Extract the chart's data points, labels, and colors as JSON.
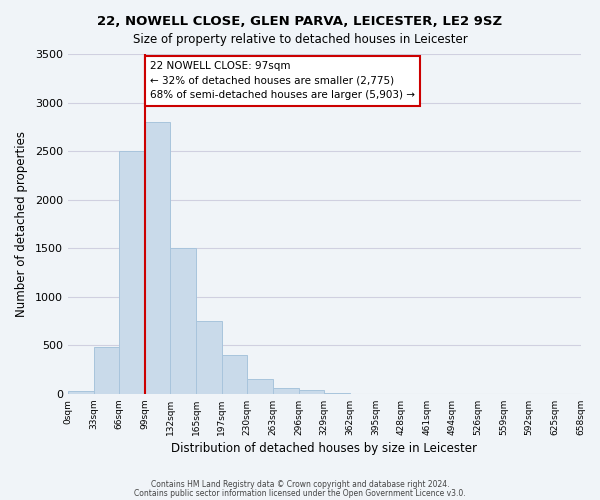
{
  "title1": "22, NOWELL CLOSE, GLEN PARVA, LEICESTER, LE2 9SZ",
  "title2": "Size of property relative to detached houses in Leicester",
  "xlabel": "Distribution of detached houses by size in Leicester",
  "ylabel": "Number of detached properties",
  "footer1": "Contains HM Land Registry data © Crown copyright and database right 2024.",
  "footer2": "Contains public sector information licensed under the Open Government Licence v3.0.",
  "annotation_line1": "22 NOWELL CLOSE: 97sqm",
  "annotation_line2": "← 32% of detached houses are smaller (2,775)",
  "annotation_line3": "68% of semi-detached houses are larger (5,903) →",
  "bar_values": [
    30,
    480,
    2500,
    2800,
    1500,
    750,
    400,
    155,
    60,
    35,
    5,
    0,
    0,
    0,
    0,
    0,
    0,
    0,
    0,
    0
  ],
  "bin_labels": [
    "0sqm",
    "33sqm",
    "66sqm",
    "99sqm",
    "132sqm",
    "165sqm",
    "197sqm",
    "230sqm",
    "263sqm",
    "296sqm",
    "329sqm",
    "362sqm",
    "395sqm",
    "428sqm",
    "461sqm",
    "494sqm",
    "526sqm",
    "559sqm",
    "592sqm",
    "625sqm",
    "658sqm"
  ],
  "bar_color": "#c9daea",
  "bar_edge_color": "#a8c4dc",
  "vertical_line_x": 3,
  "vertical_line_color": "#cc0000",
  "annotation_box_edge_color": "#cc0000",
  "ylim": [
    0,
    3500
  ],
  "yticks": [
    0,
    500,
    1000,
    1500,
    2000,
    2500,
    3000,
    3500
  ],
  "grid_color": "#d0d0e0",
  "bg_color": "#f0f4f8"
}
